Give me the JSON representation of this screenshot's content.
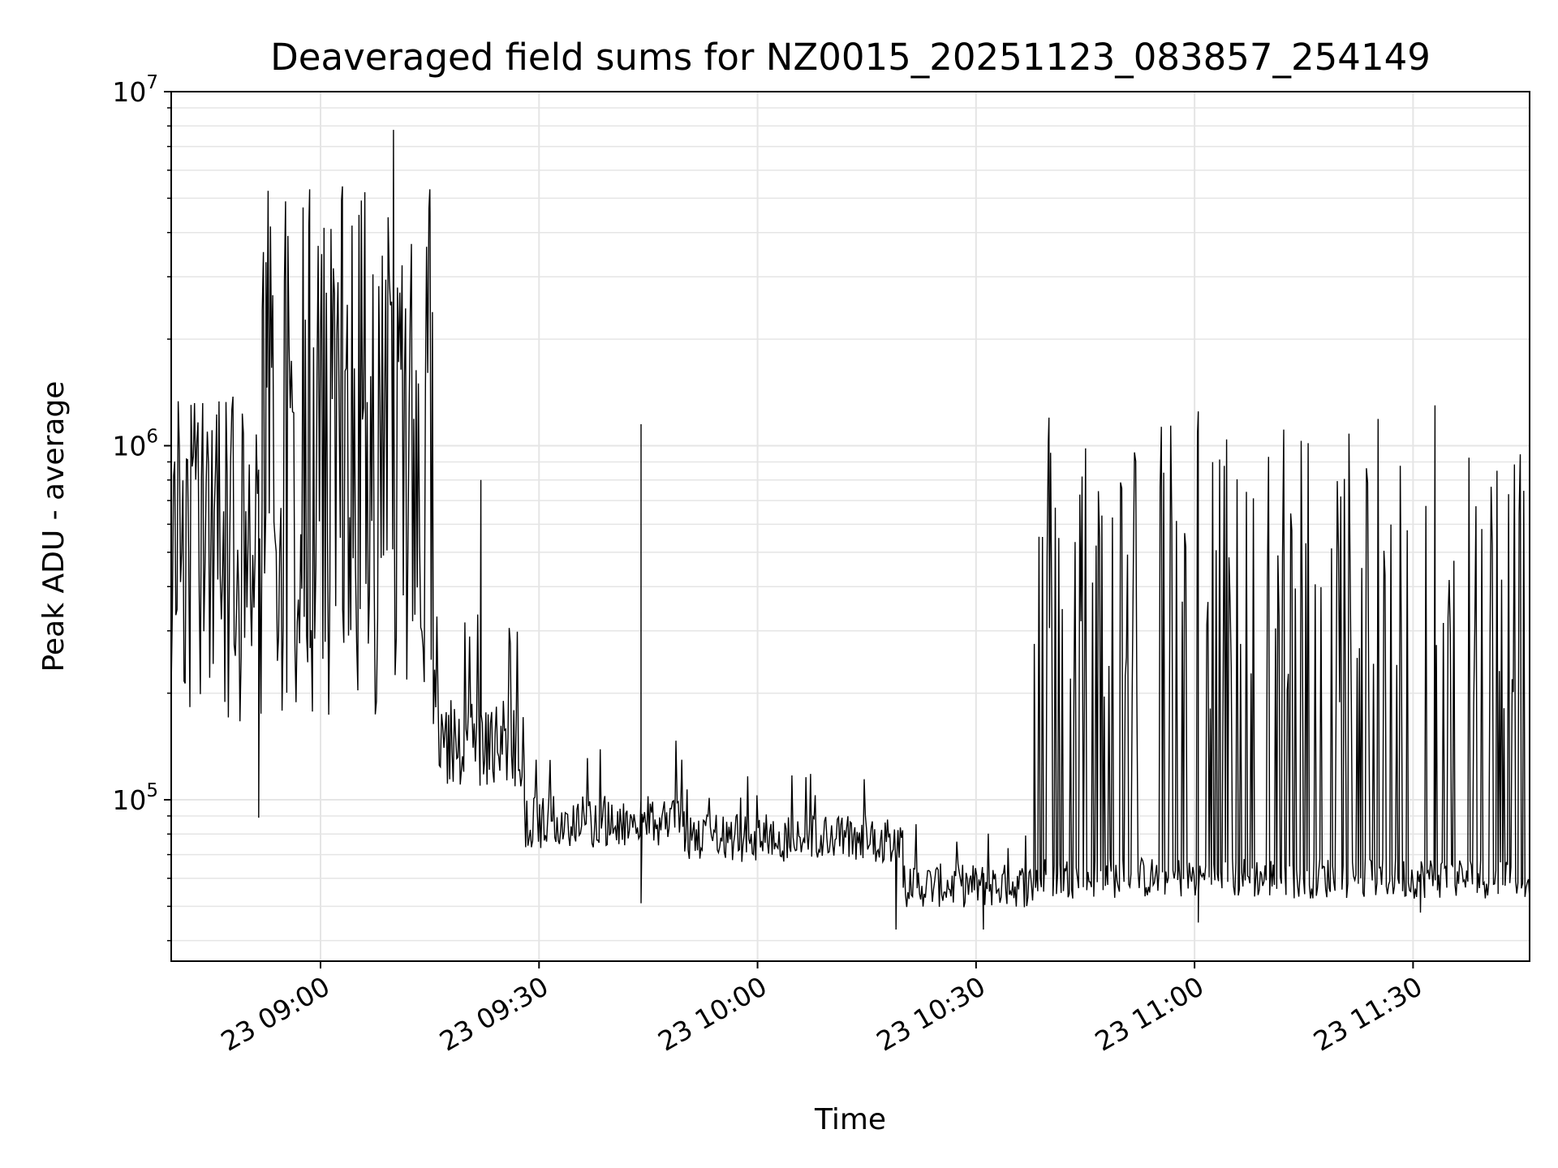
{
  "chart_data": {
    "type": "line",
    "title": "Deaveraged field sums for NZ0015_20251123_083857_254149",
    "xlabel": "Time",
    "ylabel": "Peak ADU - average",
    "x_range": [
      "2025-11-23 08:39:30",
      "2025-11-23 11:46:00"
    ],
    "ylim": [
      35000,
      10000000
    ],
    "yscale": "log",
    "grid": true,
    "line_color": "#000000",
    "grid_color": "#e5e5e5",
    "xticks": [
      {
        "time": "2025-11-23 09:00",
        "label": "23 09:00"
      },
      {
        "time": "2025-11-23 09:30",
        "label": "23 09:30"
      },
      {
        "time": "2025-11-23 10:00",
        "label": "23 10:00"
      },
      {
        "time": "2025-11-23 10:30",
        "label": "23 10:30"
      },
      {
        "time": "2025-11-23 11:00",
        "label": "23 11:00"
      },
      {
        "time": "2025-11-23 11:30",
        "label": "23 11:30"
      }
    ],
    "yticks": [
      {
        "value": 100000,
        "base": "10",
        "exp": "5"
      },
      {
        "value": 1000000,
        "base": "10",
        "exp": "6"
      },
      {
        "value": 10000000,
        "base": "10",
        "exp": "7"
      }
    ],
    "series": [
      {
        "segments": [
          {
            "start": "2025-11-23 08:39:30",
            "end": "2025-11-23 08:52:00",
            "floor": 110000,
            "ceil": 1400000,
            "baseline": 420000,
            "spike_prob": 0.5
          },
          {
            "start": "2025-11-23 08:52:00",
            "end": "2025-11-23 09:15:30",
            "floor": 110000,
            "ceil": 5500000,
            "baseline": 500000,
            "spike_prob": 0.55
          },
          {
            "start": "2025-11-23 09:15:30",
            "end": "2025-11-23 09:28:00",
            "floor": 90000,
            "ceil": 350000,
            "baseline": 170000,
            "spike_prob": 0.08
          },
          {
            "start": "2025-11-23 09:28:00",
            "end": "2025-11-23 09:50:00",
            "floor": 65000,
            "ceil": 150000,
            "baseline": 95000,
            "spike_prob": 0.05
          },
          {
            "start": "2025-11-23 09:50:00",
            "end": "2025-11-23 10:20:00",
            "floor": 60000,
            "ceil": 120000,
            "baseline": 85000,
            "spike_prob": 0.07
          },
          {
            "start": "2025-11-23 10:20:00",
            "end": "2025-11-23 10:38:00",
            "floor": 45000,
            "ceil": 90000,
            "baseline": 62000,
            "spike_prob": 0.1
          },
          {
            "start": "2025-11-23 10:38:00",
            "end": "2025-11-23 11:46:00",
            "floor": 48000,
            "ceil": 1200000,
            "baseline": 65000,
            "spike_prob": 0.3
          }
        ],
        "peaks": [
          {
            "time": "2025-11-23 08:52:30",
            "value": 3300000
          },
          {
            "time": "2025-11-23 08:58:30",
            "value": 5300000
          },
          {
            "time": "2025-11-23 09:03:00",
            "value": 5400000
          },
          {
            "time": "2025-11-23 09:10:00",
            "value": 7800000
          },
          {
            "time": "2025-11-23 09:15:00",
            "value": 5300000
          },
          {
            "time": "2025-11-23 08:51:30",
            "value": 89000
          },
          {
            "time": "2025-11-23 09:22:00",
            "value": 800000
          },
          {
            "time": "2025-11-23 09:44:00",
            "value": 1150000
          },
          {
            "time": "2025-11-23 09:44:00",
            "value": 51000
          },
          {
            "time": "2025-11-23 10:19:00",
            "value": 43000
          },
          {
            "time": "2025-11-23 10:31:00",
            "value": 43000
          },
          {
            "time": "2025-11-23 10:40:00",
            "value": 1200000
          },
          {
            "time": "2025-11-23 11:00:30",
            "value": 1250000
          },
          {
            "time": "2025-11-23 11:00:30",
            "value": 45000
          },
          {
            "time": "2025-11-23 11:33:00",
            "value": 1300000
          },
          {
            "time": "2025-11-23 11:31:00",
            "value": 48000
          }
        ]
      }
    ]
  }
}
